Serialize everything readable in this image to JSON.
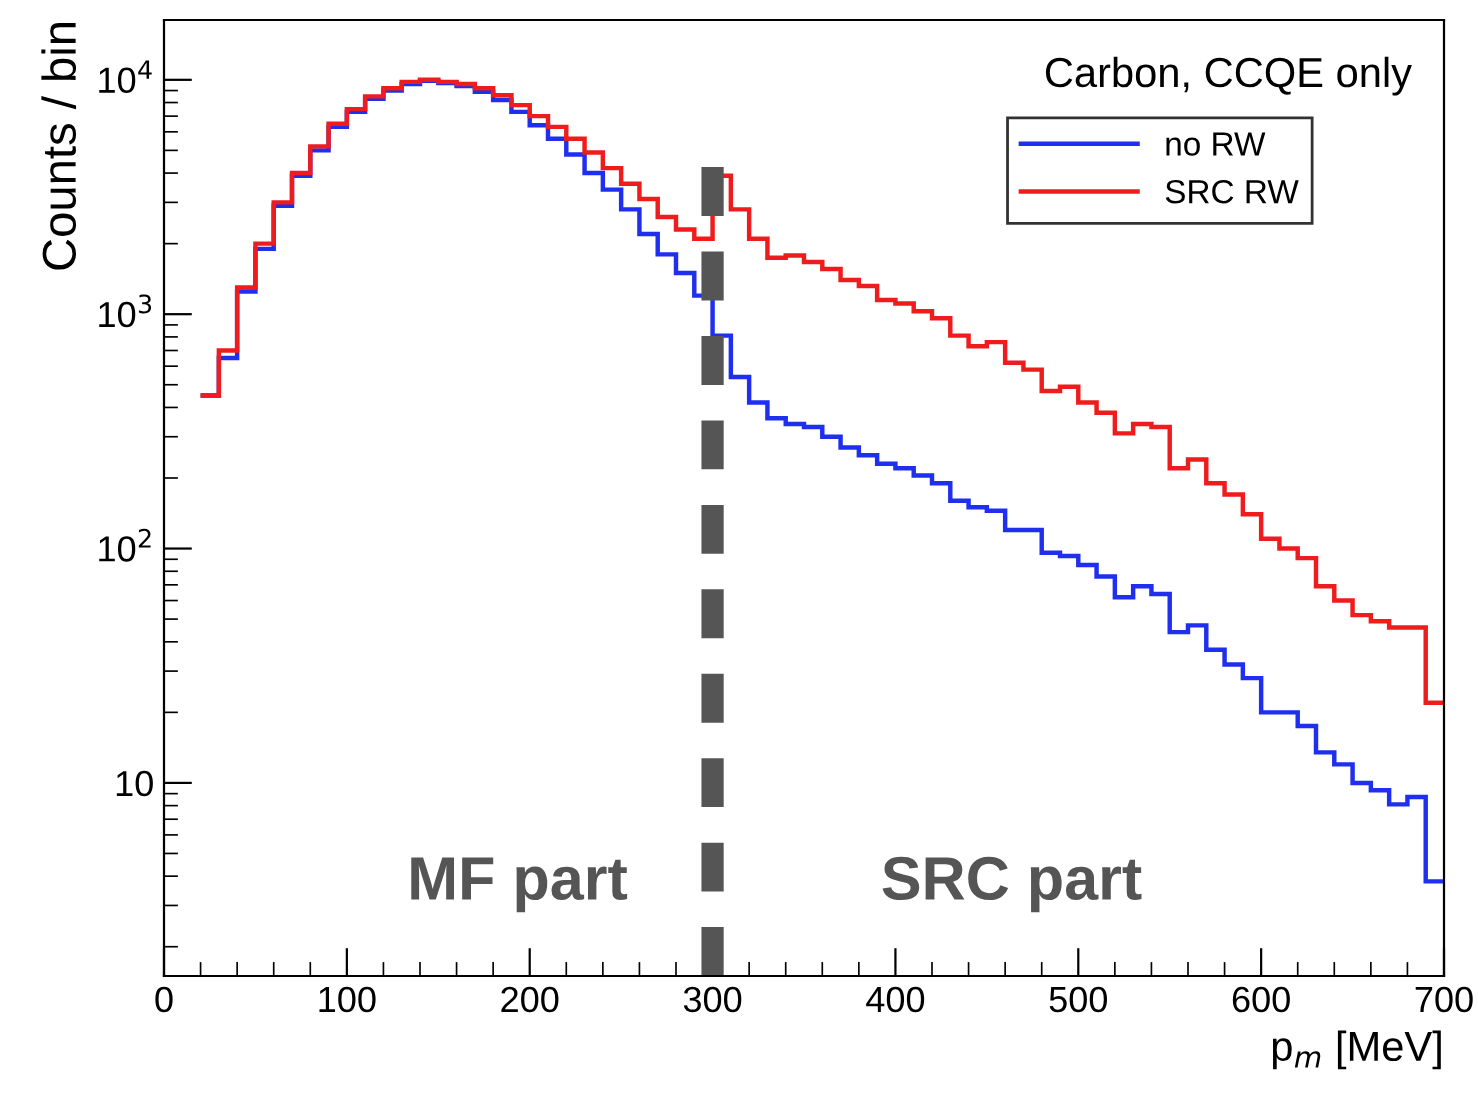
{
  "chart_data": {
    "type": "histogram",
    "title": "Carbon, CCQE only",
    "xlabel": "p$_{m}$ [MeV]",
    "ylabel": "Counts / bin",
    "bins": [
      20,
      30,
      40,
      50,
      60,
      70,
      80,
      90,
      100,
      110,
      120,
      130,
      140,
      150,
      160,
      170,
      180,
      190,
      200,
      210,
      220,
      230,
      240,
      250,
      260,
      270,
      280,
      290,
      300,
      310,
      320,
      330,
      340,
      350,
      360,
      370,
      380,
      390,
      400,
      410,
      420,
      430,
      440,
      450,
      460,
      470,
      480,
      490,
      500,
      510,
      520,
      530,
      540,
      550,
      560,
      570,
      580,
      590,
      600,
      610,
      620,
      630,
      640,
      650,
      660,
      670,
      680,
      690,
      700
    ],
    "series": [
      {
        "name": "no RW",
        "color": "#1f2ff0",
        "values": [
          450,
          650,
          1250,
          1900,
          2900,
          3900,
          5000,
          6300,
          7300,
          8300,
          9000,
          9600,
          9900,
          9700,
          9400,
          8900,
          8200,
          7300,
          6400,
          5600,
          4800,
          4000,
          3400,
          2800,
          2200,
          1800,
          1500,
          1200,
          810,
          540,
          420,
          360,
          340,
          330,
          300,
          270,
          250,
          230,
          220,
          205,
          190,
          160,
          150,
          145,
          120,
          120,
          96,
          93,
          85,
          76,
          62,
          69,
          64,
          44,
          47,
          37,
          32,
          28,
          20,
          20,
          17.5,
          13.5,
          12,
          10,
          9.3,
          8.1,
          8.7,
          3.8
        ]
      },
      {
        "name": "SRC RW",
        "color": "#ee1c1c",
        "values": [
          450,
          700,
          1300,
          2000,
          3000,
          4000,
          5200,
          6500,
          7500,
          8500,
          9200,
          9800,
          10000,
          9800,
          9600,
          9200,
          8600,
          7800,
          7000,
          6300,
          5600,
          4900,
          4200,
          3600,
          3100,
          2600,
          2300,
          2100,
          3900,
          2800,
          2100,
          1740,
          1780,
          1670,
          1560,
          1400,
          1320,
          1150,
          1110,
          1030,
          960,
          810,
          730,
          760,
          620,
          580,
          470,
          490,
          420,
          380,
          310,
          340,
          330,
          220,
          240,
          190,
          170,
          140,
          110,
          100,
          91,
          69,
          60,
          52,
          49,
          46,
          46,
          22
        ]
      }
    ],
    "xlim": [
      0,
      700
    ],
    "xticks": [
      0,
      100,
      200,
      300,
      400,
      500,
      600,
      700
    ],
    "log": "y",
    "ylim": [
      1.5,
      18000
    ],
    "yticks": [
      {
        "value": 10,
        "label": "10"
      },
      {
        "value": 100,
        "label": "10$^{2}$"
      },
      {
        "value": 1000,
        "label": "10$^{3}$"
      },
      {
        "value": 10000,
        "label": "10$^{4}$"
      }
    ],
    "ref_lines": [
      {
        "axis": "x",
        "value": 300,
        "label": null,
        "color": "#555555",
        "line_style": "dashed"
      }
    ],
    "annotations": [
      "MF part",
      "SRC part"
    ],
    "grid": false,
    "legend": "top right",
    "line_style": "solid"
  }
}
